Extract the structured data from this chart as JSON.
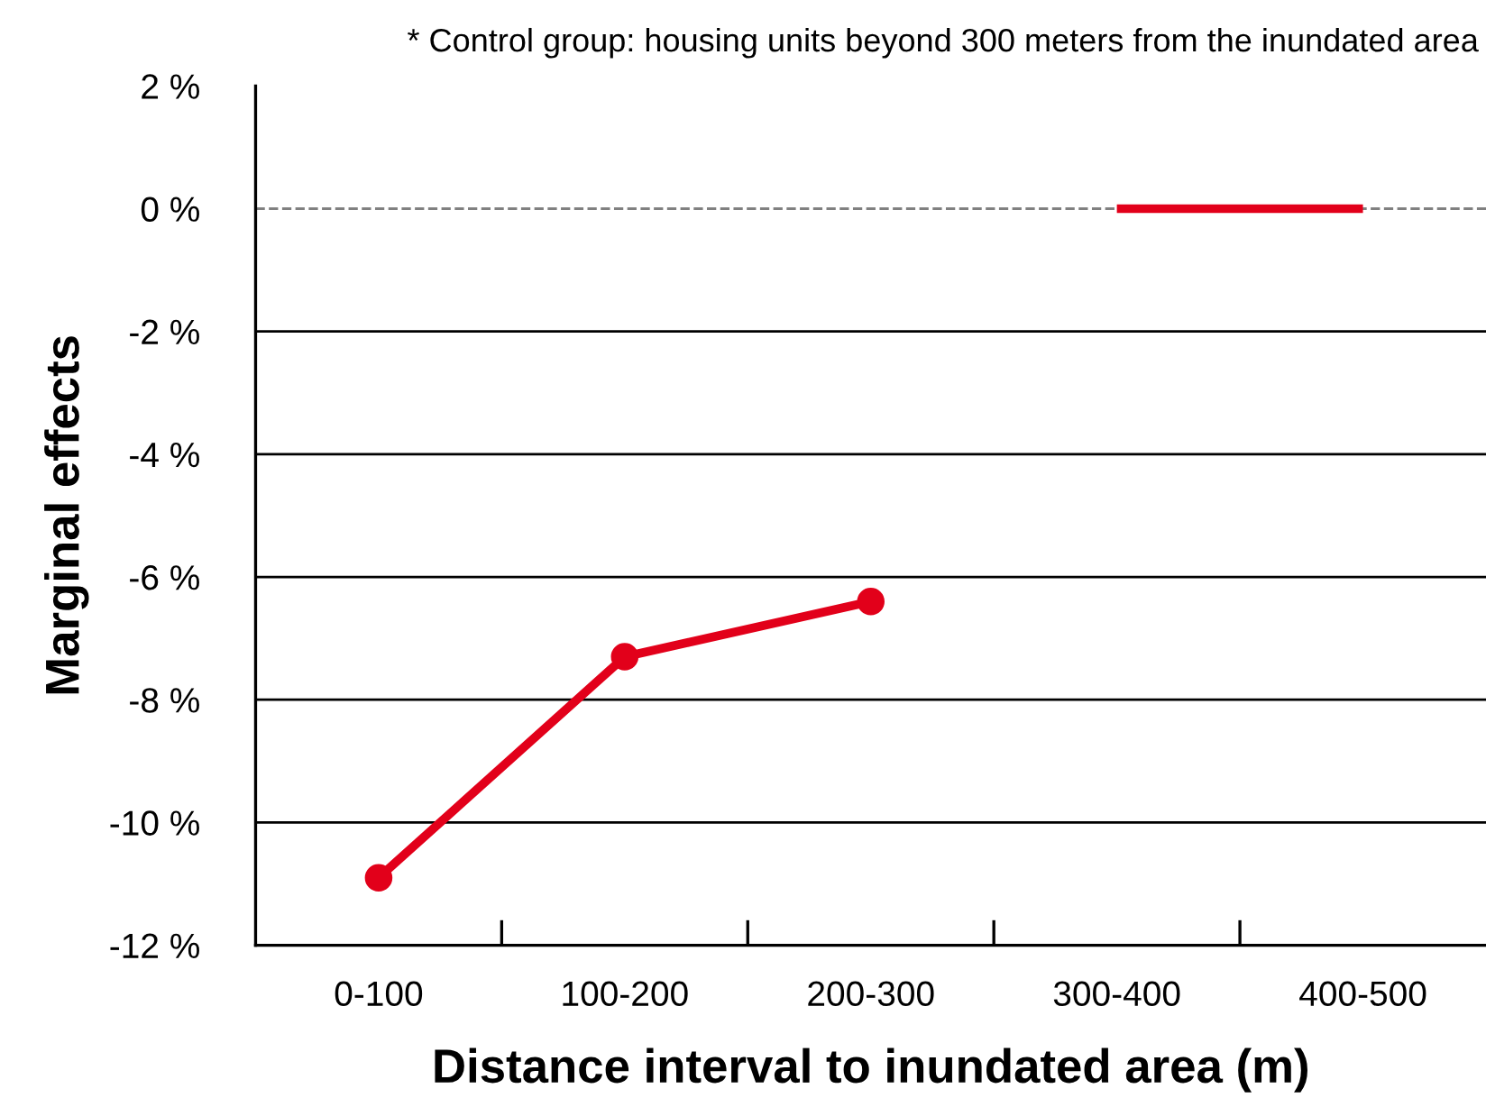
{
  "chart_data": {
    "type": "line",
    "xlabel": "Distance interval to inundated area (m)",
    "ylabel": "Marginal effects",
    "annotations": [
      "* Control group: housing units beyond 300 meters from the inundated area"
    ],
    "categories": [
      "0-100",
      "100-200",
      "200-300",
      "300-400",
      "400-500"
    ],
    "series": [
      {
        "color": "#e2001a",
        "values": [
          -10.9,
          -7.3,
          -6.4,
          null,
          null
        ],
        "marker": "circle"
      },
      {
        "color": "#e2001a",
        "values": [
          null,
          null,
          null,
          0,
          0
        ],
        "marker": "none"
      }
    ],
    "ylim": [
      -12,
      2
    ],
    "yticks": [
      {
        "value": -12,
        "label": "-12 %"
      },
      {
        "value": -10,
        "label": "-10 %"
      },
      {
        "value": -8,
        "label": "-8 %"
      },
      {
        "value": -6,
        "label": "-6 %"
      },
      {
        "value": -4,
        "label": "-4 %"
      },
      {
        "value": -2,
        "label": "-2 %"
      },
      {
        "value": 0,
        "label": "0 %"
      },
      {
        "value": 2,
        "label": "2 %"
      }
    ],
    "grid": "y",
    "ref_lines": [
      {
        "axis": "y",
        "value": 0,
        "color": "#808080",
        "line_style": "dashed"
      }
    ],
    "line_style": "solid"
  }
}
